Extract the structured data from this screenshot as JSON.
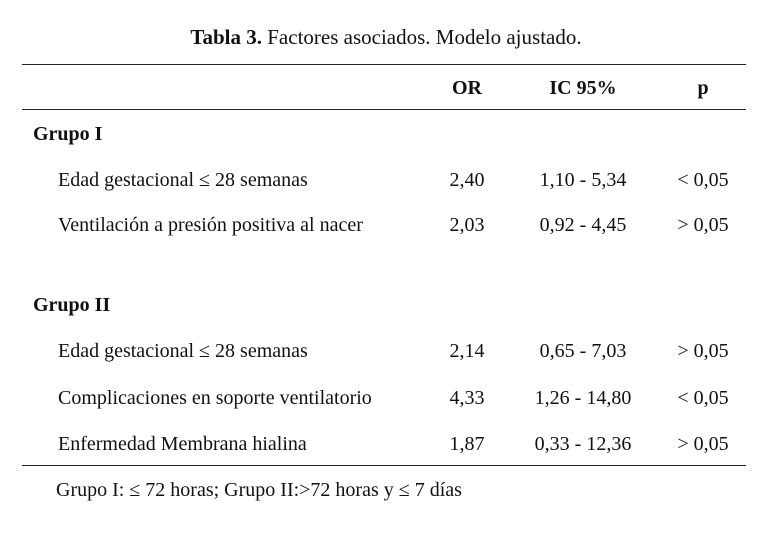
{
  "caption": {
    "label": "Tabla 3.",
    "text": "Factores asociados. Modelo ajustado."
  },
  "headers": {
    "or": "OR",
    "ic": "IC 95%",
    "p": "p"
  },
  "groups": [
    {
      "label": "Grupo I",
      "rows": [
        {
          "label": "Edad gestacional ≤ 28 semanas",
          "or": "2,40",
          "ic": "1,10 - 5,34",
          "p": "< 0,05"
        },
        {
          "label": "Ventilación a presión positiva al nacer",
          "or": "2,03",
          "ic": "0,92 - 4,45",
          "p": "> 0,05"
        }
      ]
    },
    {
      "label": "Grupo II",
      "rows": [
        {
          "label": "Edad gestacional ≤ 28 semanas",
          "or": "2,14",
          "ic": "0,65 - 7,03",
          "p": "> 0,05"
        },
        {
          "label": "Complicaciones en soporte ventilatorio",
          "or": "4,33",
          "ic": "1,26 - 14,80",
          "p": "< 0,05"
        },
        {
          "label": "Enfermedad Membrana hialina",
          "or": "1,87",
          "ic": "0,33 - 12,36",
          "p": "> 0,05"
        }
      ]
    }
  ],
  "footnote": "Grupo I: ≤ 72 horas; Grupo II:>72 horas y ≤ 7 días"
}
